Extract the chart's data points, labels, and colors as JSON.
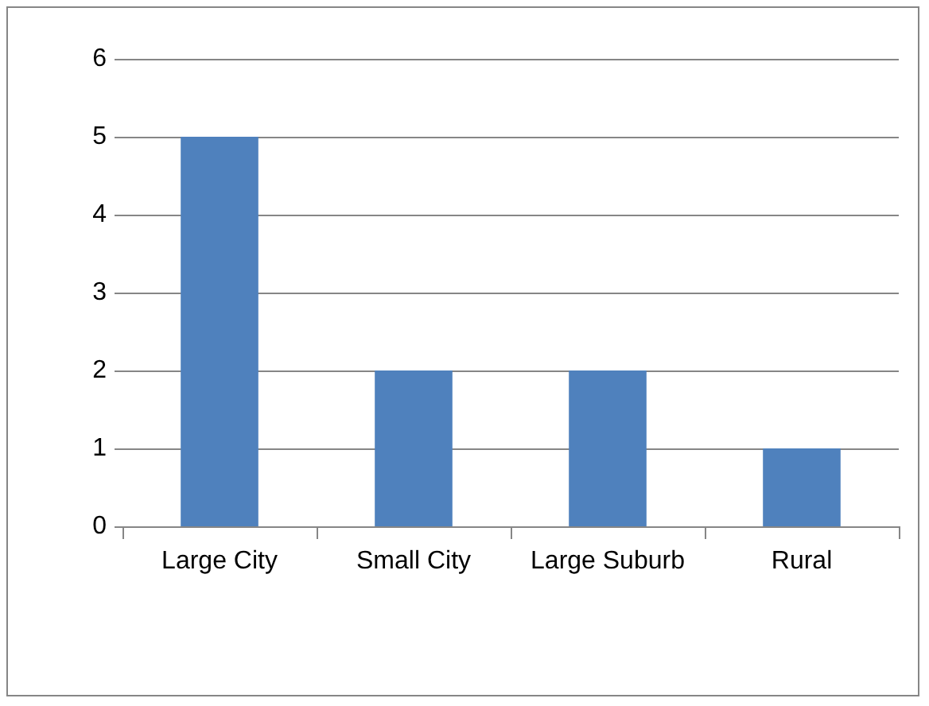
{
  "chart_data": {
    "type": "bar",
    "categories": [
      "Large City",
      "Small City",
      "Large Suburb",
      "Rural"
    ],
    "values": [
      5,
      2,
      2,
      1
    ],
    "color": "#4f81bd",
    "ylim": [
      0,
      6
    ],
    "yticks": [
      0,
      1,
      2,
      3,
      4,
      5,
      6
    ],
    "grid": "y"
  }
}
